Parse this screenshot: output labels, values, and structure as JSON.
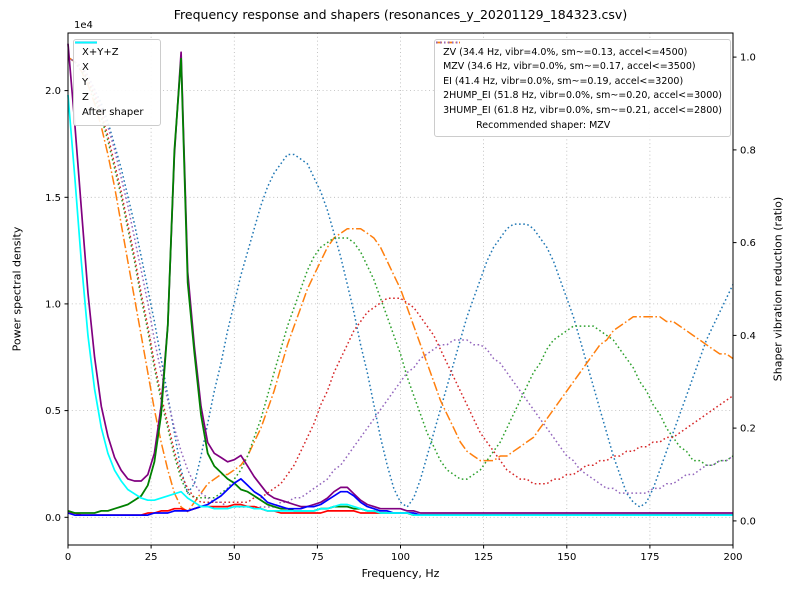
{
  "figure": {
    "title": "Frequency response and shapers (resonances_y_20201129_184323.csv)",
    "xlabel": "Frequency, Hz",
    "ylabel_left": "Power spectral density",
    "ylabel_right": "Shaper vibration reduction (ratio)",
    "offset_label": "1e4"
  },
  "chart_data": {
    "type": "line",
    "x_start": 0,
    "x_step": 2,
    "xlim": [
      0,
      200
    ],
    "ylim_left": [
      -0.13,
      2.27
    ],
    "ylim_right": [
      -0.052,
      1.052
    ],
    "x_ticks": [
      0,
      25,
      50,
      75,
      100,
      125,
      150,
      175,
      200
    ],
    "y_ticks_left": [
      0.0,
      0.5,
      1.0,
      1.5,
      2.0
    ],
    "y_ticks_right": [
      0.0,
      0.2,
      0.4,
      0.6,
      0.8,
      1.0
    ],
    "psd_unit_multiplier": "1e4",
    "recommended_label": "Recommended shaper: MZV",
    "series": [
      {
        "id": "zv",
        "label": "ZV (34.4 Hz, vibr=4.0%, sm~=0.13, accel<=4500)",
        "color": "#1f77b4",
        "style": "dotted",
        "width": 1.5,
        "axis": "right",
        "values": [
          1.0,
          0.99,
          0.98,
          0.96,
          0.93,
          0.9,
          0.86,
          0.81,
          0.76,
          0.7,
          0.64,
          0.57,
          0.5,
          0.43,
          0.35,
          0.27,
          0.19,
          0.11,
          0.06,
          0.08,
          0.14,
          0.21,
          0.28,
          0.34,
          0.41,
          0.47,
          0.53,
          0.58,
          0.63,
          0.68,
          0.72,
          0.75,
          0.77,
          0.79,
          0.79,
          0.78,
          0.77,
          0.74,
          0.71,
          0.67,
          0.62,
          0.57,
          0.51,
          0.45,
          0.38,
          0.32,
          0.25,
          0.18,
          0.12,
          0.07,
          0.04,
          0.03,
          0.05,
          0.09,
          0.14,
          0.19,
          0.24,
          0.29,
          0.34,
          0.39,
          0.44,
          0.48,
          0.52,
          0.56,
          0.59,
          0.61,
          0.63,
          0.64,
          0.64,
          0.64,
          0.63,
          0.61,
          0.59,
          0.56,
          0.52,
          0.48,
          0.44,
          0.39,
          0.34,
          0.29,
          0.24,
          0.19,
          0.14,
          0.1,
          0.06,
          0.04,
          0.03,
          0.04,
          0.07,
          0.11,
          0.15,
          0.19,
          0.23,
          0.27,
          0.31,
          0.35,
          0.39,
          0.42,
          0.45,
          0.48,
          0.51
        ]
      },
      {
        "id": "mzv",
        "label": "MZV (34.6 Hz, vibr=0.0%, sm~=0.17, accel<=3500)",
        "color": "#ff7f0e",
        "style": "dashdot",
        "width": 1.5,
        "axis": "right",
        "values": [
          1.0,
          0.99,
          0.97,
          0.94,
          0.9,
          0.85,
          0.79,
          0.72,
          0.64,
          0.56,
          0.48,
          0.4,
          0.32,
          0.24,
          0.17,
          0.11,
          0.06,
          0.03,
          0.02,
          0.04,
          0.06,
          0.08,
          0.09,
          0.1,
          0.1,
          0.11,
          0.12,
          0.14,
          0.17,
          0.2,
          0.24,
          0.28,
          0.33,
          0.38,
          0.42,
          0.46,
          0.5,
          0.53,
          0.56,
          0.59,
          0.61,
          0.62,
          0.63,
          0.63,
          0.63,
          0.62,
          0.61,
          0.59,
          0.56,
          0.53,
          0.5,
          0.46,
          0.42,
          0.38,
          0.34,
          0.3,
          0.26,
          0.23,
          0.2,
          0.17,
          0.15,
          0.14,
          0.13,
          0.13,
          0.13,
          0.14,
          0.14,
          0.15,
          0.16,
          0.17,
          0.18,
          0.2,
          0.22,
          0.24,
          0.26,
          0.28,
          0.3,
          0.32,
          0.34,
          0.36,
          0.38,
          0.39,
          0.41,
          0.42,
          0.43,
          0.44,
          0.44,
          0.44,
          0.44,
          0.44,
          0.43,
          0.43,
          0.42,
          0.41,
          0.4,
          0.39,
          0.38,
          0.37,
          0.36,
          0.36,
          0.35
        ]
      },
      {
        "id": "ei",
        "label": "EI (41.4 Hz, vibr=0.0%, sm~=0.19, accel<=3200)",
        "color": "#2ca02c",
        "style": "dotted",
        "width": 1.5,
        "axis": "right",
        "values": [
          1.0,
          0.99,
          0.97,
          0.95,
          0.91,
          0.87,
          0.82,
          0.76,
          0.7,
          0.63,
          0.56,
          0.48,
          0.41,
          0.33,
          0.26,
          0.2,
          0.14,
          0.09,
          0.06,
          0.05,
          0.05,
          0.05,
          0.05,
          0.06,
          0.07,
          0.09,
          0.11,
          0.14,
          0.18,
          0.22,
          0.27,
          0.32,
          0.37,
          0.42,
          0.46,
          0.5,
          0.54,
          0.57,
          0.59,
          0.6,
          0.61,
          0.61,
          0.61,
          0.6,
          0.58,
          0.55,
          0.52,
          0.48,
          0.44,
          0.4,
          0.36,
          0.31,
          0.27,
          0.23,
          0.19,
          0.16,
          0.13,
          0.11,
          0.1,
          0.09,
          0.09,
          0.1,
          0.11,
          0.13,
          0.15,
          0.17,
          0.2,
          0.23,
          0.26,
          0.29,
          0.32,
          0.34,
          0.37,
          0.39,
          0.4,
          0.41,
          0.42,
          0.42,
          0.42,
          0.42,
          0.41,
          0.4,
          0.39,
          0.37,
          0.35,
          0.33,
          0.3,
          0.28,
          0.25,
          0.23,
          0.2,
          0.18,
          0.16,
          0.15,
          0.13,
          0.13,
          0.12,
          0.12,
          0.13,
          0.13,
          0.14
        ]
      },
      {
        "id": "2hump_ei",
        "label": "2HUMP_EI (51.8 Hz, vibr=0.0%, sm~=0.20, accel<=3000)",
        "color": "#d62728",
        "style": "dotted",
        "width": 1.5,
        "axis": "right",
        "values": [
          1.0,
          0.99,
          0.98,
          0.95,
          0.92,
          0.88,
          0.83,
          0.77,
          0.71,
          0.64,
          0.57,
          0.49,
          0.42,
          0.34,
          0.27,
          0.21,
          0.15,
          0.1,
          0.07,
          0.05,
          0.04,
          0.04,
          0.04,
          0.04,
          0.04,
          0.04,
          0.04,
          0.04,
          0.05,
          0.05,
          0.06,
          0.07,
          0.08,
          0.1,
          0.12,
          0.15,
          0.18,
          0.21,
          0.25,
          0.28,
          0.32,
          0.35,
          0.38,
          0.41,
          0.43,
          0.45,
          0.46,
          0.47,
          0.48,
          0.48,
          0.48,
          0.47,
          0.46,
          0.44,
          0.42,
          0.4,
          0.37,
          0.34,
          0.31,
          0.28,
          0.25,
          0.22,
          0.19,
          0.17,
          0.15,
          0.13,
          0.11,
          0.1,
          0.09,
          0.09,
          0.08,
          0.08,
          0.08,
          0.09,
          0.09,
          0.1,
          0.1,
          0.11,
          0.12,
          0.12,
          0.13,
          0.13,
          0.14,
          0.14,
          0.15,
          0.15,
          0.16,
          0.16,
          0.17,
          0.17,
          0.18,
          0.18,
          0.19,
          0.2,
          0.21,
          0.22,
          0.23,
          0.24,
          0.25,
          0.26,
          0.27
        ]
      },
      {
        "id": "3hump_ei",
        "label": "3HUMP_EI (61.8 Hz, vibr=0.0%, sm~=0.21, accel<=2800)",
        "color": "#9467bd",
        "style": "dotted",
        "width": 1.5,
        "axis": "right",
        "values": [
          1.0,
          0.99,
          0.98,
          0.96,
          0.93,
          0.89,
          0.85,
          0.8,
          0.74,
          0.68,
          0.61,
          0.54,
          0.47,
          0.39,
          0.32,
          0.26,
          0.2,
          0.15,
          0.11,
          0.08,
          0.06,
          0.05,
          0.04,
          0.04,
          0.03,
          0.03,
          0.03,
          0.03,
          0.03,
          0.03,
          0.03,
          0.03,
          0.04,
          0.04,
          0.05,
          0.05,
          0.06,
          0.07,
          0.08,
          0.09,
          0.11,
          0.12,
          0.14,
          0.16,
          0.18,
          0.2,
          0.22,
          0.24,
          0.26,
          0.28,
          0.3,
          0.32,
          0.33,
          0.35,
          0.36,
          0.37,
          0.38,
          0.38,
          0.39,
          0.39,
          0.39,
          0.38,
          0.38,
          0.37,
          0.35,
          0.34,
          0.32,
          0.3,
          0.28,
          0.26,
          0.24,
          0.22,
          0.2,
          0.18,
          0.16,
          0.14,
          0.13,
          0.11,
          0.1,
          0.09,
          0.08,
          0.07,
          0.07,
          0.06,
          0.06,
          0.06,
          0.06,
          0.06,
          0.07,
          0.07,
          0.08,
          0.08,
          0.09,
          0.1,
          0.1,
          0.11,
          0.12,
          0.12,
          0.13,
          0.13,
          0.14
        ]
      },
      {
        "id": "sum",
        "label": "X+Y+Z",
        "color": "#800080",
        "style": "solid",
        "width": 1.7,
        "axis": "left",
        "values": [
          2.22,
          1.85,
          1.45,
          1.05,
          0.75,
          0.52,
          0.38,
          0.28,
          0.22,
          0.18,
          0.17,
          0.17,
          0.2,
          0.3,
          0.52,
          0.9,
          1.7,
          2.18,
          1.15,
          0.8,
          0.52,
          0.35,
          0.3,
          0.28,
          0.26,
          0.27,
          0.29,
          0.24,
          0.19,
          0.15,
          0.11,
          0.09,
          0.08,
          0.07,
          0.06,
          0.05,
          0.05,
          0.06,
          0.07,
          0.09,
          0.12,
          0.14,
          0.14,
          0.11,
          0.08,
          0.06,
          0.05,
          0.04,
          0.04,
          0.04,
          0.04,
          0.03,
          0.03,
          0.02,
          0.02,
          0.02,
          0.02,
          0.02,
          0.02,
          0.02,
          0.02,
          0.02,
          0.02,
          0.02,
          0.02,
          0.02,
          0.02,
          0.02,
          0.02,
          0.02,
          0.02,
          0.02,
          0.02,
          0.02,
          0.02,
          0.02,
          0.02,
          0.02,
          0.02,
          0.02,
          0.02,
          0.02,
          0.02,
          0.02,
          0.02,
          0.02,
          0.02,
          0.02,
          0.02,
          0.02,
          0.02,
          0.02,
          0.02,
          0.02,
          0.02,
          0.02,
          0.02,
          0.02,
          0.02,
          0.02,
          0.02
        ]
      },
      {
        "id": "x",
        "label": "X",
        "color": "#ff0000",
        "style": "solid",
        "width": 1.7,
        "axis": "left",
        "values": [
          0.02,
          0.02,
          0.01,
          0.01,
          0.01,
          0.01,
          0.01,
          0.01,
          0.01,
          0.01,
          0.01,
          0.01,
          0.02,
          0.02,
          0.03,
          0.03,
          0.04,
          0.04,
          0.03,
          0.04,
          0.05,
          0.05,
          0.05,
          0.05,
          0.05,
          0.06,
          0.06,
          0.05,
          0.05,
          0.04,
          0.03,
          0.03,
          0.02,
          0.02,
          0.02,
          0.02,
          0.02,
          0.02,
          0.02,
          0.03,
          0.03,
          0.03,
          0.03,
          0.03,
          0.02,
          0.02,
          0.02,
          0.02,
          0.02,
          0.02,
          0.02,
          0.02,
          0.01,
          0.01,
          0.01,
          0.01,
          0.01,
          0.01,
          0.01,
          0.01,
          0.01,
          0.01,
          0.01,
          0.01,
          0.01,
          0.01,
          0.01,
          0.01,
          0.01,
          0.01,
          0.01,
          0.01,
          0.01,
          0.01,
          0.01,
          0.01,
          0.01,
          0.01,
          0.01,
          0.01,
          0.01,
          0.01,
          0.01,
          0.01,
          0.01,
          0.01,
          0.01,
          0.01,
          0.01,
          0.01,
          0.01,
          0.01,
          0.01,
          0.01,
          0.01,
          0.01,
          0.01,
          0.01,
          0.01,
          0.01,
          0.01
        ]
      },
      {
        "id": "y",
        "label": "Y",
        "color": "#008000",
        "style": "solid",
        "width": 1.8,
        "axis": "left",
        "values": [
          0.03,
          0.02,
          0.02,
          0.02,
          0.02,
          0.03,
          0.03,
          0.04,
          0.05,
          0.06,
          0.08,
          0.1,
          0.15,
          0.26,
          0.48,
          0.9,
          1.72,
          2.15,
          1.1,
          0.77,
          0.48,
          0.3,
          0.24,
          0.21,
          0.18,
          0.16,
          0.13,
          0.12,
          0.1,
          0.08,
          0.06,
          0.05,
          0.04,
          0.04,
          0.03,
          0.03,
          0.03,
          0.03,
          0.04,
          0.04,
          0.05,
          0.05,
          0.05,
          0.04,
          0.04,
          0.03,
          0.03,
          0.02,
          0.02,
          0.02,
          0.02,
          0.02,
          0.01,
          0.01,
          0.01,
          0.01,
          0.01,
          0.01,
          0.01,
          0.01,
          0.01,
          0.01,
          0.01,
          0.01,
          0.01,
          0.01,
          0.01,
          0.01,
          0.01,
          0.01,
          0.01,
          0.01,
          0.01,
          0.01,
          0.01,
          0.01,
          0.01,
          0.01,
          0.01,
          0.01,
          0.01,
          0.01,
          0.01,
          0.01,
          0.01,
          0.01,
          0.01,
          0.01,
          0.01,
          0.01,
          0.01,
          0.01,
          0.01,
          0.01,
          0.01,
          0.01,
          0.01,
          0.01,
          0.01,
          0.01,
          0.01
        ]
      },
      {
        "id": "z",
        "label": "Z",
        "color": "#0000ff",
        "style": "solid",
        "width": 1.7,
        "axis": "left",
        "values": [
          0.02,
          0.01,
          0.01,
          0.01,
          0.01,
          0.01,
          0.01,
          0.01,
          0.01,
          0.01,
          0.01,
          0.01,
          0.01,
          0.02,
          0.02,
          0.02,
          0.03,
          0.03,
          0.03,
          0.04,
          0.05,
          0.06,
          0.08,
          0.1,
          0.13,
          0.16,
          0.18,
          0.15,
          0.12,
          0.1,
          0.07,
          0.06,
          0.05,
          0.04,
          0.04,
          0.04,
          0.05,
          0.05,
          0.06,
          0.08,
          0.1,
          0.12,
          0.12,
          0.1,
          0.07,
          0.05,
          0.04,
          0.03,
          0.03,
          0.02,
          0.02,
          0.02,
          0.02,
          0.01,
          0.01,
          0.01,
          0.01,
          0.01,
          0.01,
          0.01,
          0.01,
          0.01,
          0.01,
          0.01,
          0.01,
          0.01,
          0.01,
          0.01,
          0.01,
          0.01,
          0.01,
          0.01,
          0.01,
          0.01,
          0.01,
          0.01,
          0.01,
          0.01,
          0.01,
          0.01,
          0.01,
          0.01,
          0.01,
          0.01,
          0.01,
          0.01,
          0.01,
          0.01,
          0.01,
          0.01,
          0.01,
          0.01,
          0.01,
          0.01,
          0.01,
          0.01,
          0.01,
          0.01,
          0.01,
          0.01,
          0.01
        ]
      },
      {
        "id": "after",
        "label": "After shaper",
        "color": "#00ffff",
        "style": "solid",
        "width": 1.7,
        "axis": "left",
        "values": [
          1.98,
          1.6,
          1.2,
          0.85,
          0.6,
          0.42,
          0.3,
          0.22,
          0.17,
          0.13,
          0.11,
          0.09,
          0.08,
          0.08,
          0.09,
          0.1,
          0.11,
          0.12,
          0.09,
          0.07,
          0.05,
          0.05,
          0.04,
          0.04,
          0.04,
          0.05,
          0.05,
          0.05,
          0.04,
          0.04,
          0.03,
          0.03,
          0.03,
          0.03,
          0.03,
          0.03,
          0.03,
          0.03,
          0.04,
          0.04,
          0.05,
          0.06,
          0.06,
          0.05,
          0.04,
          0.03,
          0.03,
          0.02,
          0.02,
          0.02,
          0.02,
          0.02,
          0.01,
          0.01,
          0.01,
          0.01,
          0.01,
          0.01,
          0.01,
          0.01,
          0.01,
          0.01,
          0.01,
          0.01,
          0.01,
          0.01,
          0.01,
          0.01,
          0.01,
          0.01,
          0.01,
          0.01,
          0.01,
          0.01,
          0.01,
          0.01,
          0.01,
          0.01,
          0.01,
          0.01,
          0.01,
          0.01,
          0.01,
          0.01,
          0.01,
          0.01,
          0.01,
          0.01,
          0.01,
          0.01,
          0.01,
          0.01,
          0.01,
          0.01,
          0.01,
          0.01,
          0.01,
          0.01,
          0.01,
          0.01,
          0.01
        ]
      }
    ]
  }
}
